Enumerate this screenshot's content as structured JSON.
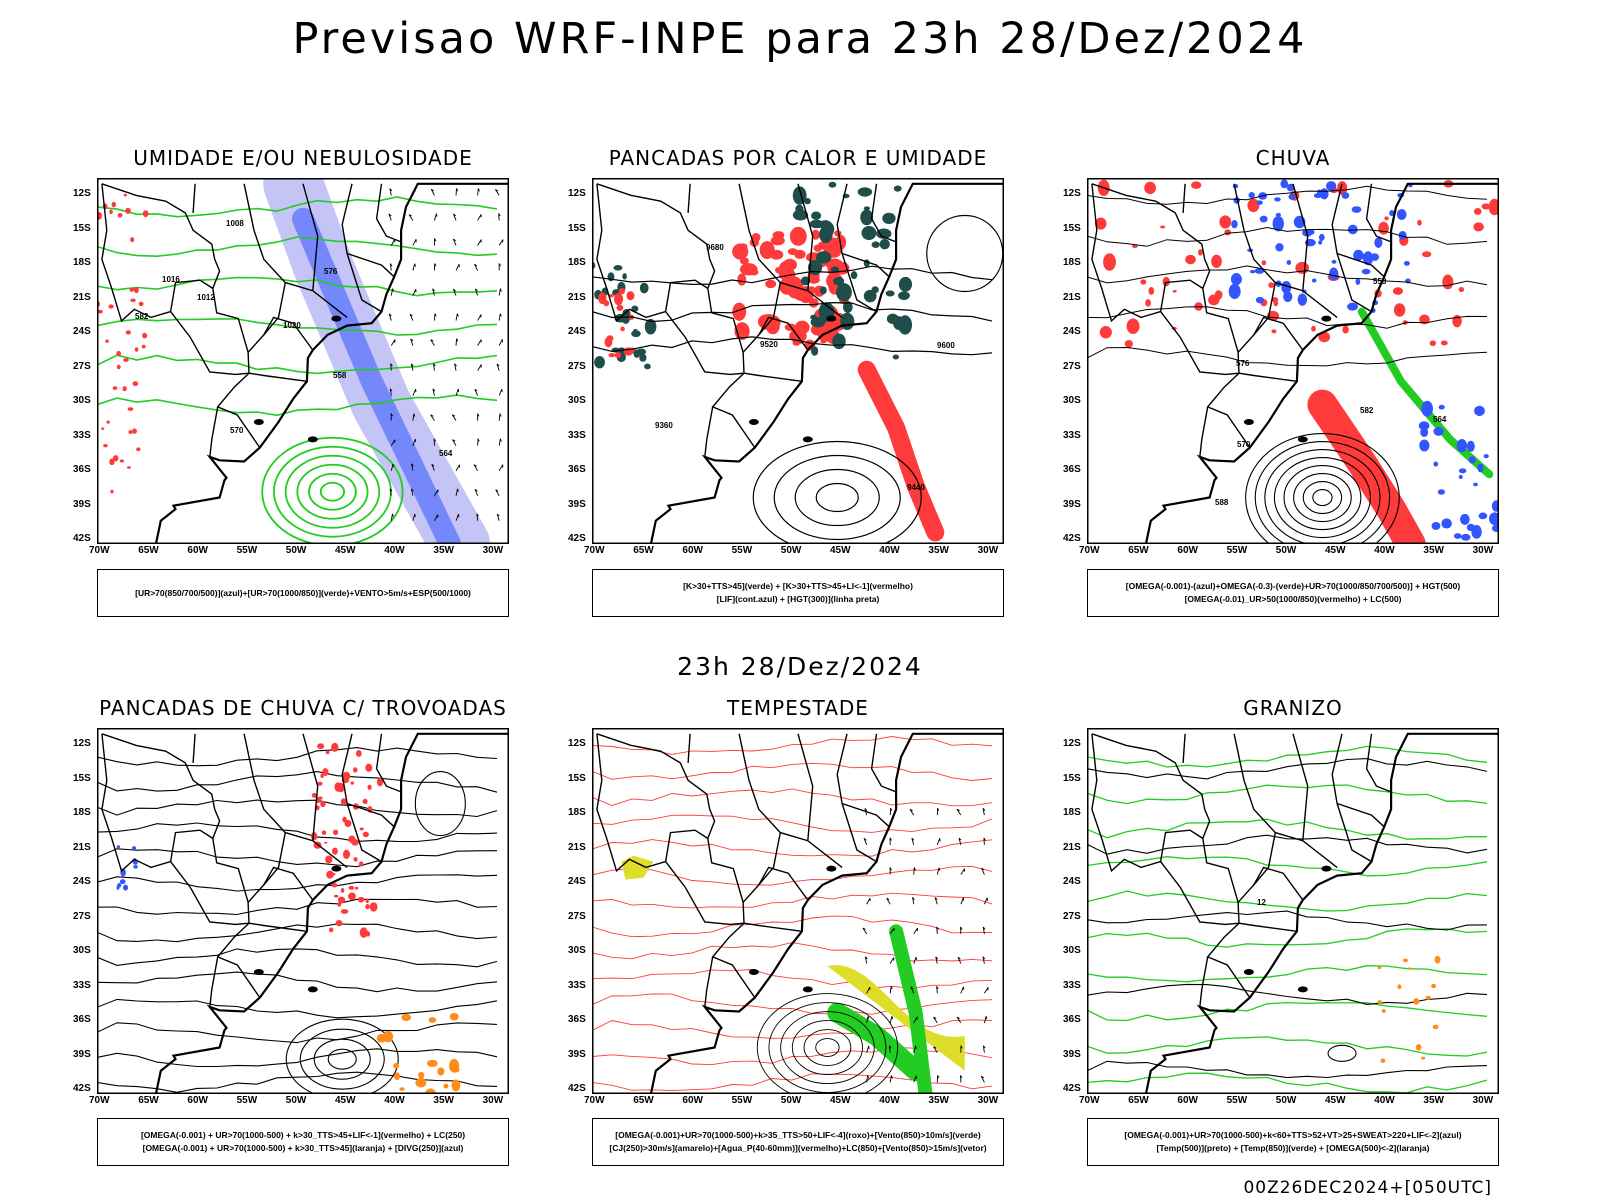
{
  "title": "Previsao WRF-INPE  para 23h 28/Dez/2024",
  "mid_title": "23h 28/Dez/2024",
  "run_stamp": "00Z26DEC2024+[050UTC]",
  "lat_labels": [
    "12S",
    "15S",
    "18S",
    "21S",
    "24S",
    "27S",
    "30S",
    "33S",
    "36S",
    "39S",
    "42S"
  ],
  "lon_labels": [
    "70W",
    "65W",
    "60W",
    "55W",
    "50W",
    "45W",
    "40W",
    "35W",
    "30W"
  ],
  "colors": {
    "blue": "#3355ff",
    "lightblue": "#9c9cf0",
    "green": "#22cc22",
    "red": "#ff3a3a",
    "darkteal": "#1f4d4a",
    "orange": "#ff8c1a",
    "yellow": "#dede2a"
  },
  "panels": [
    {
      "title": "UMIDADE E/OU NEBULOSIDADE",
      "legend": [
        "[UR>70(850/700/500)](azul)+[UR>70(1000/850)](verde)+VENTO>5m/s+ESP(500/1000)"
      ],
      "contour_labels": [
        "1012",
        "1016",
        "1020",
        "1008",
        "570",
        "576",
        "582",
        "558",
        "564"
      ]
    },
    {
      "title": "PANCADAS POR CALOR E UMIDADE",
      "legend": [
        "[K>30+TTS>45](verde) + [K>30+TTS>45+LI<-1](vermelho)",
        "[LIF](cont.azul) + [HGT(300)](linha preta)"
      ],
      "contour_labels": [
        "9680",
        "9600",
        "9520",
        "9440",
        "9360"
      ]
    },
    {
      "title": "CHUVA",
      "legend": [
        "[OMEGA(-0.001)-(azul)+OMEGA(-0.3)-(verde)+UR>70(1000/850/700/500)] + HGT(500)",
        "[OMEGA(-0.01)_UR>50(1000/850)(vermelho) + LC(500)"
      ],
      "contour_labels": [
        "588",
        "582",
        "576",
        "570",
        "564",
        "558"
      ]
    },
    {
      "title": "PANCADAS DE CHUVA C/ TROVOADAS",
      "legend": [
        "[OMEGA(-0.001) + UR>70(1000-500) + k>30_TTS>45+LIF<-1](vermelho) + LC(250)",
        "[OMEGA(-0.001) + UR>70(1000-500) + k>30_TTS>45](laranja) + [DIVG(250)](azul)"
      ],
      "contour_labels": []
    },
    {
      "title": "TEMPESTADE",
      "legend": [
        "[OMEGA(-0.001)+UR>70(1000-500)+k>35_TTS>50+LIF<-4](roxo)+[Vento(850)>10m/s](verde)",
        "[CJ(250)>30m/s](amarelo)+[Agua_P(40-60mm)](vermelho)+LC(850)+[Vento(850)>15m/s](vetor)"
      ],
      "contour_labels": []
    },
    {
      "title": "GRANIZO",
      "legend": [
        "[OMEGA(-0.001)+UR>70(1000-500)+k<60+TTS>52+VT>25+SWEAT>220+LIF<-2](azul)",
        "[Temp(500)](preto) + [Temp(850)](verde) + [OMEGA(500)<-2](laranja)"
      ],
      "contour_labels": [
        "12"
      ]
    }
  ]
}
